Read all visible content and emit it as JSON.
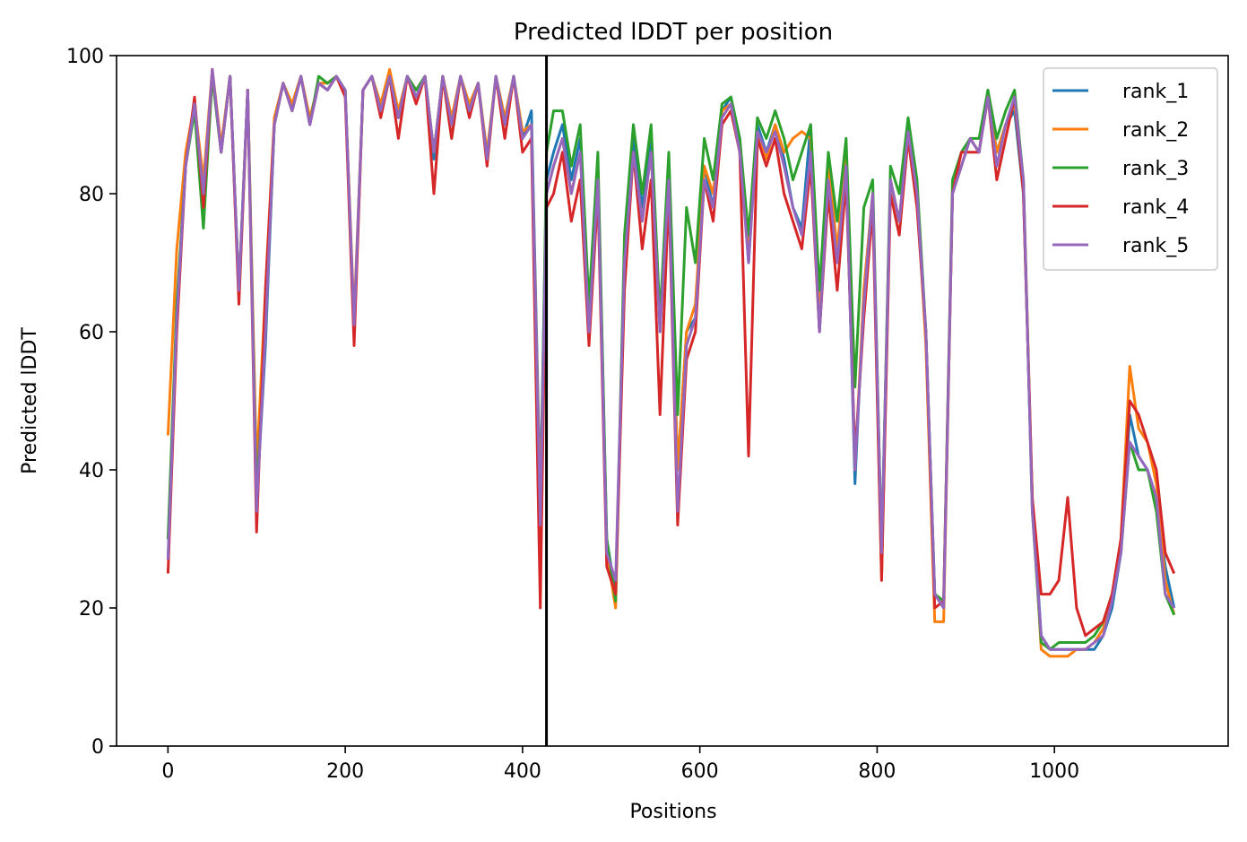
{
  "chart_data": {
    "type": "line",
    "title": "Predicted lDDT per position",
    "xlabel": "Positions",
    "ylabel": "Predicted lDDT",
    "xlim": [
      -58,
      1196
    ],
    "ylim": [
      0,
      100
    ],
    "xticks": [
      0,
      200,
      400,
      600,
      800,
      1000
    ],
    "yticks": [
      0,
      20,
      40,
      60,
      80,
      100
    ],
    "grid": false,
    "legend_position": "top-right",
    "vline_x": 427,
    "vline_color": "#000000",
    "series": [
      {
        "name": "rank_1",
        "color": "#1f77b4",
        "x": [
          0,
          10,
          20,
          30,
          40,
          50,
          60,
          70,
          80,
          90,
          100,
          110,
          120,
          130,
          140,
          150,
          160,
          170,
          180,
          190,
          200,
          210,
          220,
          230,
          240,
          250,
          260,
          270,
          280,
          290,
          300,
          310,
          320,
          330,
          340,
          350,
          360,
          370,
          380,
          390,
          400,
          410,
          420,
          427,
          435,
          445,
          455,
          465,
          475,
          485,
          495,
          505,
          515,
          525,
          535,
          545,
          555,
          565,
          575,
          585,
          595,
          605,
          615,
          625,
          635,
          645,
          655,
          665,
          675,
          685,
          695,
          705,
          715,
          725,
          735,
          745,
          755,
          765,
          775,
          785,
          795,
          805,
          815,
          825,
          835,
          845,
          855,
          865,
          875,
          885,
          895,
          905,
          915,
          925,
          935,
          945,
          955,
          965,
          975,
          985,
          995,
          1005,
          1015,
          1025,
          1035,
          1045,
          1055,
          1065,
          1075,
          1085,
          1095,
          1105,
          1115,
          1125,
          1135
        ],
        "values": [
          27,
          62,
          85,
          92,
          80,
          97,
          86,
          97,
          65,
          95,
          35,
          58,
          90,
          96,
          92,
          97,
          90,
          96,
          95,
          97,
          95,
          60,
          95,
          97,
          92,
          97,
          91,
          97,
          94,
          97,
          85,
          97,
          90,
          97,
          92,
          96,
          85,
          97,
          90,
          97,
          88,
          92,
          36,
          82,
          86,
          90,
          82,
          88,
          62,
          84,
          30,
          22,
          70,
          88,
          78,
          88,
          60,
          84,
          40,
          60,
          62,
          84,
          78,
          92,
          94,
          88,
          70,
          90,
          86,
          90,
          85,
          78,
          75,
          90,
          60,
          82,
          70,
          85,
          38,
          66,
          80,
          28,
          82,
          76,
          90,
          80,
          60,
          22,
          20,
          80,
          84,
          88,
          86,
          95,
          86,
          90,
          92,
          80,
          36,
          16,
          14,
          14,
          14,
          14,
          14,
          14,
          16,
          20,
          28,
          48,
          42,
          40,
          36,
          26,
          20
        ]
      },
      {
        "name": "rank_2",
        "color": "#ff7f0e",
        "x": [
          0,
          10,
          20,
          30,
          40,
          50,
          60,
          70,
          80,
          90,
          100,
          110,
          120,
          130,
          140,
          150,
          160,
          170,
          180,
          190,
          200,
          210,
          220,
          230,
          240,
          250,
          260,
          270,
          280,
          290,
          300,
          310,
          320,
          330,
          340,
          350,
          360,
          370,
          380,
          390,
          400,
          410,
          420,
          427,
          435,
          445,
          455,
          465,
          475,
          485,
          495,
          505,
          515,
          525,
          535,
          545,
          555,
          565,
          575,
          585,
          595,
          605,
          615,
          625,
          635,
          645,
          655,
          665,
          675,
          685,
          695,
          705,
          715,
          725,
          735,
          745,
          755,
          765,
          775,
          785,
          795,
          805,
          815,
          825,
          835,
          845,
          855,
          865,
          875,
          885,
          895,
          905,
          915,
          925,
          935,
          945,
          955,
          965,
          975,
          985,
          995,
          1005,
          1015,
          1025,
          1035,
          1045,
          1055,
          1065,
          1075,
          1085,
          1095,
          1105,
          1115,
          1125,
          1135
        ],
        "values": [
          45,
          72,
          86,
          93,
          82,
          98,
          87,
          97,
          66,
          95,
          40,
          66,
          91,
          96,
          93,
          97,
          91,
          96,
          96,
          97,
          95,
          62,
          95,
          97,
          93,
          98,
          92,
          97,
          95,
          97,
          86,
          97,
          91,
          97,
          93,
          96,
          86,
          97,
          91,
          97,
          89,
          90,
          34,
          80,
          84,
          88,
          80,
          86,
          62,
          82,
          28,
          20,
          72,
          86,
          76,
          86,
          62,
          82,
          40,
          60,
          64,
          84,
          80,
          92,
          93,
          87,
          72,
          89,
          85,
          90,
          86,
          88,
          89,
          88,
          62,
          84,
          72,
          86,
          40,
          66,
          80,
          24,
          82,
          76,
          89,
          80,
          58,
          18,
          18,
          80,
          84,
          88,
          86,
          94,
          86,
          90,
          93,
          82,
          36,
          14,
          13,
          13,
          13,
          14,
          14,
          15,
          17,
          22,
          30,
          55,
          46,
          44,
          38,
          24,
          19
        ]
      },
      {
        "name": "rank_3",
        "color": "#2ca02c",
        "x": [
          0,
          10,
          20,
          30,
          40,
          50,
          60,
          70,
          80,
          90,
          100,
          110,
          120,
          130,
          140,
          150,
          160,
          170,
          180,
          190,
          200,
          210,
          220,
          230,
          240,
          250,
          260,
          270,
          280,
          290,
          300,
          310,
          320,
          330,
          340,
          350,
          360,
          370,
          380,
          390,
          400,
          410,
          420,
          427,
          435,
          445,
          455,
          465,
          475,
          485,
          495,
          505,
          515,
          525,
          535,
          545,
          555,
          565,
          575,
          585,
          595,
          605,
          615,
          625,
          635,
          645,
          655,
          665,
          675,
          685,
          695,
          705,
          715,
          725,
          735,
          745,
          755,
          765,
          775,
          785,
          795,
          805,
          815,
          825,
          835,
          845,
          855,
          865,
          875,
          885,
          895,
          905,
          915,
          925,
          935,
          945,
          955,
          965,
          975,
          985,
          995,
          1005,
          1015,
          1025,
          1035,
          1045,
          1055,
          1065,
          1075,
          1085,
          1095,
          1105,
          1115,
          1125,
          1135
        ],
        "values": [
          30,
          64,
          84,
          92,
          75,
          97,
          86,
          97,
          66,
          95,
          36,
          60,
          90,
          96,
          92,
          97,
          90,
          97,
          96,
          97,
          95,
          60,
          95,
          97,
          92,
          97,
          91,
          97,
          95,
          97,
          86,
          97,
          88,
          97,
          92,
          96,
          85,
          97,
          90,
          97,
          88,
          90,
          30,
          86,
          92,
          92,
          84,
          90,
          64,
          86,
          30,
          21,
          74,
          90,
          80,
          90,
          62,
          86,
          48,
          78,
          70,
          88,
          82,
          93,
          94,
          88,
          74,
          91,
          88,
          92,
          88,
          82,
          86,
          90,
          66,
          86,
          76,
          88,
          52,
          78,
          82,
          28,
          84,
          80,
          91,
          82,
          60,
          22,
          21,
          82,
          86,
          88,
          88,
          95,
          88,
          92,
          95,
          82,
          34,
          15,
          14,
          15,
          15,
          15,
          15,
          16,
          18,
          22,
          28,
          44,
          40,
          40,
          34,
          22,
          19
        ]
      },
      {
        "name": "rank_4",
        "color": "#d62728",
        "x": [
          0,
          10,
          20,
          30,
          40,
          50,
          60,
          70,
          80,
          90,
          100,
          110,
          120,
          130,
          140,
          150,
          160,
          170,
          180,
          190,
          200,
          210,
          220,
          230,
          240,
          250,
          260,
          270,
          280,
          290,
          300,
          310,
          320,
          330,
          340,
          350,
          360,
          370,
          380,
          390,
          400,
          410,
          420,
          427,
          435,
          445,
          455,
          465,
          475,
          485,
          495,
          505,
          515,
          525,
          535,
          545,
          555,
          565,
          575,
          585,
          595,
          605,
          615,
          625,
          635,
          645,
          655,
          665,
          675,
          685,
          695,
          705,
          715,
          725,
          735,
          745,
          755,
          765,
          775,
          785,
          795,
          805,
          815,
          825,
          835,
          845,
          855,
          865,
          875,
          885,
          895,
          905,
          915,
          925,
          935,
          945,
          955,
          965,
          975,
          985,
          995,
          1005,
          1015,
          1025,
          1035,
          1045,
          1055,
          1065,
          1075,
          1085,
          1095,
          1105,
          1115,
          1125,
          1135
        ],
        "values": [
          25,
          60,
          84,
          94,
          78,
          98,
          86,
          97,
          64,
          95,
          31,
          66,
          90,
          96,
          92,
          97,
          90,
          96,
          95,
          97,
          94,
          58,
          95,
          97,
          91,
          97,
          88,
          97,
          93,
          97,
          80,
          97,
          88,
          97,
          91,
          96,
          84,
          97,
          88,
          97,
          86,
          88,
          20,
          78,
          80,
          86,
          76,
          82,
          58,
          80,
          26,
          22,
          66,
          86,
          72,
          82,
          48,
          80,
          32,
          56,
          60,
          82,
          76,
          90,
          92,
          86,
          42,
          88,
          84,
          88,
          80,
          76,
          72,
          84,
          60,
          80,
          66,
          82,
          42,
          62,
          78,
          24,
          80,
          74,
          88,
          78,
          60,
          20,
          21,
          80,
          86,
          86,
          86,
          94,
          82,
          88,
          94,
          80,
          36,
          22,
          22,
          24,
          36,
          20,
          16,
          17,
          18,
          22,
          30,
          50,
          48,
          44,
          40,
          28,
          25
        ]
      },
      {
        "name": "rank_5",
        "color": "#9467bd",
        "x": [
          0,
          10,
          20,
          30,
          40,
          50,
          60,
          70,
          80,
          90,
          100,
          110,
          120,
          130,
          140,
          150,
          160,
          170,
          180,
          190,
          200,
          210,
          220,
          230,
          240,
          250,
          260,
          270,
          280,
          290,
          300,
          310,
          320,
          330,
          340,
          350,
          360,
          370,
          380,
          390,
          400,
          410,
          420,
          427,
          435,
          445,
          455,
          465,
          475,
          485,
          495,
          505,
          515,
          525,
          535,
          545,
          555,
          565,
          575,
          585,
          595,
          605,
          615,
          625,
          635,
          645,
          655,
          665,
          675,
          685,
          695,
          705,
          715,
          725,
          735,
          745,
          755,
          765,
          775,
          785,
          795,
          805,
          815,
          825,
          835,
          845,
          855,
          865,
          875,
          885,
          895,
          905,
          915,
          925,
          935,
          945,
          955,
          965,
          975,
          985,
          995,
          1005,
          1015,
          1025,
          1035,
          1045,
          1055,
          1065,
          1075,
          1085,
          1095,
          1105,
          1115,
          1125,
          1135
        ],
        "values": [
          27,
          62,
          84,
          93,
          80,
          98,
          86,
          97,
          66,
          95,
          34,
          60,
          90,
          96,
          92,
          97,
          90,
          96,
          95,
          97,
          95,
          61,
          95,
          97,
          92,
          97,
          91,
          97,
          94,
          97,
          86,
          97,
          90,
          97,
          92,
          96,
          85,
          97,
          90,
          97,
          88,
          90,
          32,
          80,
          84,
          88,
          80,
          86,
          60,
          82,
          28,
          24,
          70,
          86,
          76,
          86,
          60,
          82,
          34,
          58,
          62,
          82,
          78,
          91,
          93,
          86,
          70,
          89,
          86,
          89,
          84,
          78,
          74,
          86,
          60,
          82,
          70,
          84,
          40,
          64,
          80,
          28,
          82,
          76,
          89,
          80,
          60,
          22,
          20,
          80,
          84,
          88,
          86,
          94,
          84,
          90,
          94,
          82,
          34,
          16,
          14,
          14,
          14,
          14,
          14,
          15,
          16,
          21,
          28,
          44,
          42,
          40,
          36,
          22,
          20
        ]
      }
    ]
  }
}
